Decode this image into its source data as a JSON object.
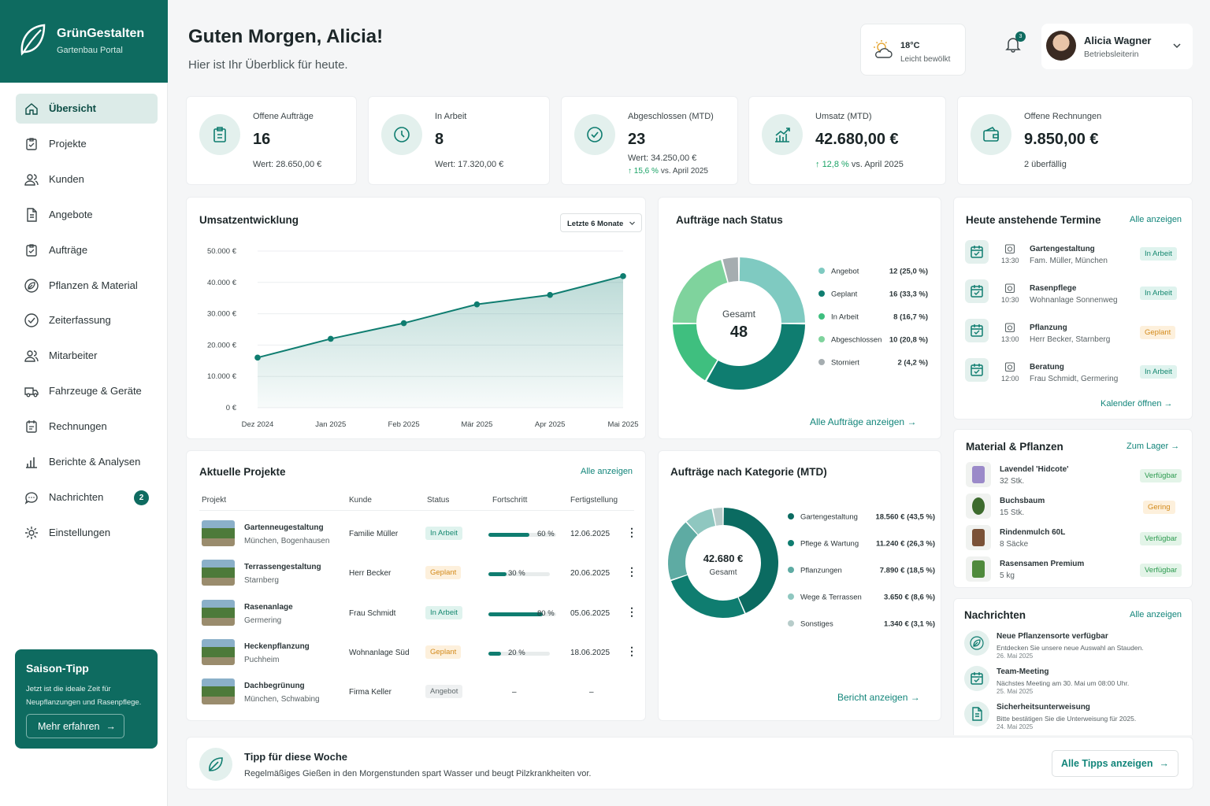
{
  "brand": {
    "name": "GrünGestalten",
    "sub": "Gartenbau Portal"
  },
  "nav": [
    {
      "label": "Übersicht",
      "icon": "home-icon",
      "active": true
    },
    {
      "label": "Projekte",
      "icon": "clipboard-icon"
    },
    {
      "label": "Kunden",
      "icon": "users-icon"
    },
    {
      "label": "Angebote",
      "icon": "document-icon"
    },
    {
      "label": "Aufträge",
      "icon": "clipboard-check-icon"
    },
    {
      "label": "Pflanzen & Material",
      "icon": "leaf-icon"
    },
    {
      "label": "Zeiterfassung",
      "icon": "check-circle-icon"
    },
    {
      "label": "Mitarbeiter",
      "icon": "users-icon"
    },
    {
      "label": "Fahrzeuge & Geräte",
      "icon": "truck-icon"
    },
    {
      "label": "Rechnungen",
      "icon": "receipt-icon"
    },
    {
      "label": "Berichte & Analysen",
      "icon": "bar-chart-icon"
    },
    {
      "label": "Nachrichten",
      "icon": "chat-icon",
      "badge": "2"
    },
    {
      "label": "Einstellungen",
      "icon": "gear-icon"
    }
  ],
  "tip": {
    "title": "Saison-Tipp",
    "text": "Jetzt ist die ideale Zeit für Neupflanzungen und Rasenpflege.",
    "button": "Mehr erfahren"
  },
  "header": {
    "greeting": "Guten Morgen, Alicia!",
    "subtitle": "Hier ist Ihr Überblick für heute."
  },
  "weather": {
    "temp": "18°C",
    "condition": "Leicht bewölkt"
  },
  "notifications": {
    "count": "3"
  },
  "user": {
    "name": "Alicia Wagner",
    "role": "Betriebsleiterin"
  },
  "kpis": [
    {
      "label": "Offene Aufträge",
      "value": "16",
      "sub": "Wert: 28.650,00 €"
    },
    {
      "label": "In Arbeit",
      "value": "8",
      "sub": "Wert: 17.320,00 €"
    },
    {
      "label": "Abgeschlossen (MTD)",
      "value": "23",
      "sub": "Wert: 34.250,00 €",
      "trend": "15,6 %",
      "trend_text": "vs. April 2025"
    },
    {
      "label": "Umsatz (MTD)",
      "value": "42.680,00 €",
      "trend": "12,8 %",
      "trend_text": "vs. April 2025"
    },
    {
      "label": "Offene Rechnungen",
      "value": "9.850,00 €",
      "warn": "2 überfällig"
    }
  ],
  "revenue": {
    "title": "Umsatzentwicklung",
    "range": "Letzte 6 Monate"
  },
  "chart_data": [
    {
      "type": "area",
      "title": "Umsatzentwicklung",
      "x": [
        "Dez 2024",
        "Jan 2025",
        "Feb 2025",
        "Mär 2025",
        "Apr 2025",
        "Mai 2025"
      ],
      "values": [
        16000,
        22000,
        27000,
        33000,
        36000,
        42000
      ],
      "yticks": [
        "50.000 €",
        "40.000 €",
        "30.000 €",
        "20.000 €",
        "10.000 €",
        "0 €"
      ],
      "ylim": [
        0,
        50000
      ],
      "color": "#0f7d70",
      "grid": true
    },
    {
      "type": "pie",
      "title": "Aufträge nach Status",
      "center_label": "Gesamt",
      "center_value": "48",
      "slices": [
        {
          "label": "Angebot",
          "value": 12,
          "display": "12 (25,0 %)",
          "color": "#7fcac1"
        },
        {
          "label": "Geplant",
          "value": 16,
          "display": "16 (33,3 %)",
          "color": "#0f7d70"
        },
        {
          "label": "In Arbeit",
          "value": 8,
          "display": "8 (16,7 %)",
          "color": "#3fbf7f"
        },
        {
          "label": "Abgeschlossen",
          "value": 10,
          "display": "10 (20,8 %)",
          "color": "#7fd39d"
        },
        {
          "label": "Storniert",
          "value": 2,
          "display": "2 (4,2 %)",
          "color": "#a5adb0"
        }
      ]
    },
    {
      "type": "pie",
      "title": "Aufträge nach Kategorie (MTD)",
      "center_value": "42.680 €",
      "center_label": "Gesamt",
      "slices": [
        {
          "label": "Gartengestaltung",
          "value": 18560,
          "display": "18.560 € (43,5 %)",
          "color": "#0b6b61"
        },
        {
          "label": "Pflege & Wartung",
          "value": 11240,
          "display": "11.240 € (26,3 %)",
          "color": "#0f7d70"
        },
        {
          "label": "Pflanzungen",
          "value": 7890,
          "display": "7.890 € (18,5 %)",
          "color": "#5eaba3"
        },
        {
          "label": "Wege & Terrassen",
          "value": 3650,
          "display": "3.650 € (8,6 %)",
          "color": "#8fc7c0"
        },
        {
          "label": "Sonstiges",
          "value": 1340,
          "display": "1.340 € (3,1 %)",
          "color": "#b7ccca"
        }
      ]
    }
  ],
  "status_link": "Alle Aufträge anzeigen",
  "category_link": "Bericht anzeigen",
  "appointments": {
    "title": "Heute anstehende Termine",
    "link": "Alle anzeigen",
    "footer": "Kalender öffnen",
    "items": [
      {
        "time": "13:30",
        "title": "Gartengestaltung",
        "sub": "Fam. Müller, München",
        "status": "In Arbeit",
        "kind": "arbeit"
      },
      {
        "time": "10:30",
        "title": "Rasenpflege",
        "sub": "Wohnanlage Sonnenweg",
        "status": "In Arbeit",
        "kind": "arbeit"
      },
      {
        "time": "13:00",
        "title": "Pflanzung",
        "sub": "Herr Becker, Starnberg",
        "status": "Geplant",
        "kind": "geplant"
      },
      {
        "time": "12:00",
        "title": "Beratung",
        "sub": "Frau Schmidt, Germering",
        "status": "In Arbeit",
        "kind": "arbeit"
      }
    ]
  },
  "projects": {
    "title": "Aktuelle Projekte",
    "link": "Alle anzeigen",
    "headers": [
      "Projekt",
      "Kunde",
      "Status",
      "Fortschritt",
      "Fertigstellung"
    ],
    "rows": [
      {
        "name": "Gartenneugestaltung",
        "loc": "München, Bogenhausen",
        "client": "Familie Müller",
        "status": "In Arbeit",
        "kind": "arbeit",
        "progress": 60,
        "progress_text": "60 %",
        "date": "12.06.2025"
      },
      {
        "name": "Terrassengestaltung",
        "loc": "Starnberg",
        "client": "Herr Becker",
        "status": "Geplant",
        "kind": "geplant",
        "progress": 30,
        "progress_text": "30 %",
        "date": "20.06.2025"
      },
      {
        "name": "Rasenanlage",
        "loc": "Germering",
        "client": "Frau Schmidt",
        "status": "In Arbeit",
        "kind": "arbeit",
        "progress": 80,
        "progress_text": "80 %",
        "date": "05.06.2025"
      },
      {
        "name": "Heckenpflanzung",
        "loc": "Puchheim",
        "client": "Wohnanlage Süd",
        "status": "Geplant",
        "kind": "geplant",
        "progress": 20,
        "progress_text": "20 %",
        "date": "18.06.2025"
      },
      {
        "name": "Dachbegrünung",
        "loc": "München, Schwabing",
        "client": "Firma Keller",
        "status": "Angebot",
        "kind": "angebot",
        "progress": null,
        "progress_text": "–",
        "date": "–"
      }
    ]
  },
  "material": {
    "title": "Material & Pflanzen",
    "link": "Zum Lager",
    "items": [
      {
        "name": "Lavendel 'Hidcote'",
        "qty": "32 Stk.",
        "status": "Verfügbar",
        "kind": "verf",
        "color": "#9b8ac9"
      },
      {
        "name": "Buchsbaum",
        "qty": "15 Stk.",
        "status": "Gering",
        "kind": "gering",
        "color": "#3d6b2e"
      },
      {
        "name": "Rindenmulch 60L",
        "qty": "8 Säcke",
        "status": "Verfügbar",
        "kind": "verf",
        "color": "#7a5238"
      },
      {
        "name": "Rasensamen Premium",
        "qty": "5 kg",
        "status": "Verfügbar",
        "kind": "verf",
        "color": "#4f8a3c"
      }
    ]
  },
  "messages": {
    "title": "Nachrichten",
    "link": "Alle anzeigen",
    "items": [
      {
        "title": "Neue Pflanzensorte verfügbar",
        "text": "Entdecken Sie unsere neue Auswahl an Stauden.",
        "date": "26. Mai 2025",
        "icon": "leaf-icon"
      },
      {
        "title": "Team-Meeting",
        "text": "Nächstes Meeting am 30. Mai um 08:00 Uhr.",
        "date": "25. Mai 2025",
        "icon": "calendar-icon"
      },
      {
        "title": "Sicherheitsunterweisung",
        "text": "Bitte bestätigen Sie die Unterweisung für 2025.",
        "date": "24. Mai 2025",
        "icon": "document-icon"
      }
    ]
  },
  "weekly_tip": {
    "title": "Tipp für diese Woche",
    "text": "Regelmäßiges Gießen in den Morgenstunden spart Wasser und beugt Pilzkrankheiten vor.",
    "button": "Alle Tipps anzeigen"
  }
}
